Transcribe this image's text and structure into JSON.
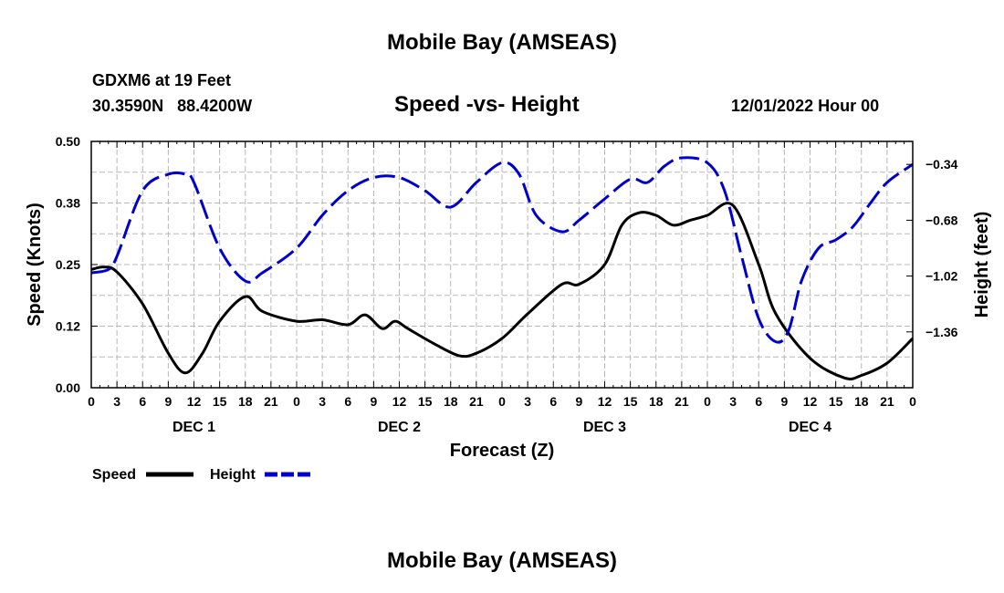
{
  "page_title": "Mobile Bay (AMSEAS)",
  "page_title_bottom": "Mobile Bay (AMSEAS)",
  "station": "GDXM6 at 19 Feet",
  "coords": "30.3590N   88.4200W",
  "subtitle": "Speed -vs- Height",
  "datestamp": "12/01/2022 Hour 00",
  "colors": {
    "speed": "#000000",
    "height": "#0000cc",
    "grid": "#b8b8b8"
  },
  "legend": {
    "speed": "Speed",
    "height": "Height"
  },
  "chart_data": {
    "type": "line",
    "title": "Speed -vs- Height",
    "xlabel": "Forecast (Z)",
    "ylabel": "Speed (Knots)",
    "y2label": "Height (feet)",
    "x_unit": "forecast hour",
    "xlim": [
      0,
      96
    ],
    "ylim": [
      0,
      0.5
    ],
    "y2lim": [
      -1.7,
      -0.2
    ],
    "y_ticks": [
      0.0,
      0.125,
      0.25,
      0.375,
      0.5
    ],
    "y_tick_labels": [
      "0.00",
      "0.12",
      "0.25",
      "0.38",
      "0.50"
    ],
    "y2_ticks": [
      -1.36,
      -1.02,
      -0.68,
      -0.34
    ],
    "y2_tick_labels": [
      "-1.36",
      "-1.02",
      "-0.68",
      "-0.34"
    ],
    "x_ticks": [
      0,
      3,
      6,
      9,
      12,
      15,
      18,
      21,
      24,
      27,
      30,
      33,
      36,
      39,
      42,
      45,
      48,
      51,
      54,
      57,
      60,
      63,
      66,
      69,
      72,
      75,
      78,
      81,
      84,
      87,
      90,
      93,
      96
    ],
    "x_tick_labels": [
      "0",
      "3",
      "6",
      "9",
      "12",
      "15",
      "18",
      "21",
      "0",
      "3",
      "6",
      "9",
      "12",
      "15",
      "18",
      "21",
      "0",
      "3",
      "6",
      "9",
      "12",
      "15",
      "18",
      "21",
      "0",
      "3",
      "6",
      "9",
      "12",
      "15",
      "18",
      "21",
      "0"
    ],
    "day_labels": [
      {
        "hour": 12,
        "label": "DEC 1"
      },
      {
        "hour": 36,
        "label": "DEC 2"
      },
      {
        "hour": 60,
        "label": "DEC 3"
      },
      {
        "hour": 84,
        "label": "DEC 4"
      }
    ],
    "grid": true,
    "legend_position": "bottom-left",
    "series": [
      {
        "name": "Speed",
        "axis": "left",
        "style": "solid",
        "x": [
          0,
          1.5,
          3,
          6,
          9,
          11,
          13,
          15,
          18,
          20,
          24,
          27,
          30,
          32,
          34,
          35.5,
          37,
          40,
          43,
          45,
          48,
          51,
          55,
          57,
          60,
          62,
          64,
          66,
          68,
          70,
          72,
          75,
          78,
          80,
          84,
          88,
          90,
          93,
          96
        ],
        "values": [
          0.24,
          0.245,
          0.235,
          0.17,
          0.07,
          0.03,
          0.07,
          0.135,
          0.185,
          0.155,
          0.135,
          0.138,
          0.128,
          0.148,
          0.12,
          0.135,
          0.12,
          0.09,
          0.065,
          0.07,
          0.1,
          0.15,
          0.21,
          0.21,
          0.25,
          0.33,
          0.355,
          0.35,
          0.33,
          0.34,
          0.35,
          0.37,
          0.25,
          0.15,
          0.06,
          0.02,
          0.025,
          0.05,
          0.1
        ]
      },
      {
        "name": "Height",
        "axis": "right",
        "style": "dashed",
        "x": [
          0,
          2,
          3,
          6,
          9,
          11,
          12,
          15,
          18,
          20,
          24,
          27,
          30,
          33,
          36,
          39,
          42,
          45,
          48,
          50,
          52,
          55,
          57,
          60,
          63,
          65,
          67,
          69,
          72,
          74,
          76,
          78,
          80,
          81.5,
          83,
          85,
          87,
          89,
          91,
          93,
          96
        ],
        "values": [
          -1.0,
          -0.98,
          -0.9,
          -0.5,
          -0.4,
          -0.4,
          -0.45,
          -0.85,
          -1.05,
          -1.0,
          -0.85,
          -0.65,
          -0.5,
          -0.42,
          -0.42,
          -0.5,
          -0.6,
          -0.45,
          -0.33,
          -0.4,
          -0.65,
          -0.75,
          -0.68,
          -0.55,
          -0.43,
          -0.45,
          -0.35,
          -0.3,
          -0.33,
          -0.5,
          -0.9,
          -1.28,
          -1.42,
          -1.35,
          -1.05,
          -0.85,
          -0.8,
          -0.72,
          -0.58,
          -0.45,
          -0.34
        ]
      }
    ]
  }
}
